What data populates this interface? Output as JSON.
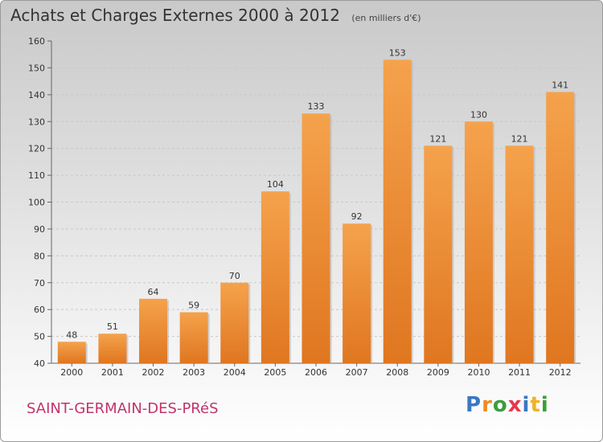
{
  "header": {
    "title": "Achats et Charges Externes 2000 à 2012",
    "unit": "(en milliers d'€)"
  },
  "footer": {
    "commune": "SAINT-GERMAIN-DES-PRéS",
    "logo": "Proxiti"
  },
  "colors": {
    "bar_light": "#f5a24c",
    "bar_dark": "#e07620",
    "grid": "#c8c8c8",
    "commune": "#c0356c"
  },
  "chart_data": {
    "type": "bar",
    "title": "Achats et Charges Externes 2000 à 2012",
    "subtitle": "(en milliers d'€)",
    "categories": [
      "2000",
      "2001",
      "2002",
      "2003",
      "2004",
      "2005",
      "2006",
      "2007",
      "2008",
      "2009",
      "2010",
      "2011",
      "2012"
    ],
    "values": [
      48,
      51,
      64,
      59,
      70,
      104,
      133,
      92,
      153,
      121,
      130,
      121,
      141
    ],
    "ylim": [
      40,
      160
    ],
    "yticks": [
      40,
      50,
      60,
      70,
      80,
      90,
      100,
      110,
      120,
      130,
      140,
      150,
      160
    ],
    "grid": true,
    "data_labels": true
  }
}
